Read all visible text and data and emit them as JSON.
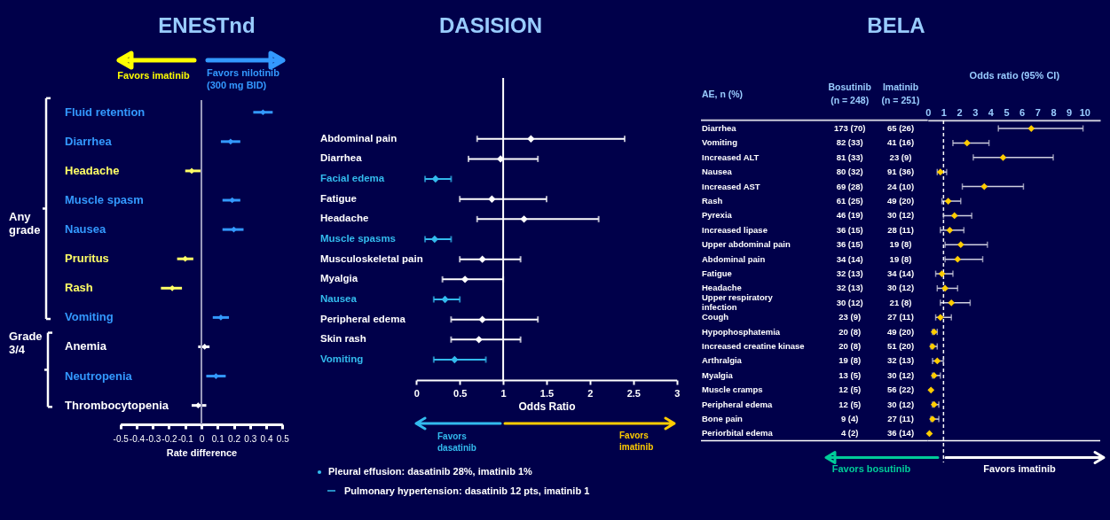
{
  "chart_data": [
    {
      "type": "scatter",
      "title": "ENESTnd",
      "orientation": "horizontal",
      "marker": "diamond",
      "categories": [
        "Fluid retention",
        "Diarrhea",
        "Headache",
        "Muscle spasm",
        "Nausea",
        "Pruritus",
        "Rash",
        "Vomiting",
        "Anemia",
        "Neutropenia",
        "Thrombocytopenia"
      ],
      "values": [
        0.38,
        0.18,
        -0.06,
        0.19,
        0.2,
        -0.1,
        -0.18,
        0.12,
        0.02,
        0.09,
        -0.02
      ],
      "errors": [
        [
          0.32,
          0.44
        ],
        [
          0.12,
          0.24
        ],
        [
          -0.1,
          0
        ],
        [
          0.13,
          0.24
        ],
        [
          0.13,
          0.26
        ],
        [
          -0.15,
          -0.05
        ],
        [
          -0.25,
          -0.12
        ],
        [
          0.07,
          0.17
        ],
        [
          -0.02,
          0.05
        ],
        [
          0.03,
          0.15
        ],
        [
          -0.06,
          0.03
        ]
      ],
      "colors": [
        "#3399ff",
        "#3399ff",
        "#ffff66",
        "#3399ff",
        "#3399ff",
        "#ffff66",
        "#ffff66",
        "#3399ff",
        "#ffffff",
        "#3399ff",
        "#ffffff"
      ],
      "xlabel": "Rate difference",
      "xlim": [
        -0.5,
        0.5
      ],
      "xticks": [
        -0.5,
        -0.4,
        -0.3,
        -0.2,
        -0.1,
        0,
        0.1,
        0.2,
        0.3,
        0.4,
        0.5
      ],
      "ref_lines": [
        {
          "axis": "x",
          "value": 0,
          "color": "#9999bb"
        }
      ],
      "annotations": [
        "Favors imatinib",
        "Favors nilotinib\n(300 mg BID)",
        "Any\ngrade",
        "Grade\n3/4"
      ]
    },
    {
      "type": "scatter",
      "title": "DASISION",
      "orientation": "horizontal",
      "marker": "diamond",
      "categories": [
        "Abdominal pain",
        "Diarrhea",
        "Facial edema",
        "Fatigue",
        "Headache",
        "Muscle spasms",
        "Musculoskeletal pain",
        "Myalgia",
        "Nausea",
        "Peripheral edema",
        "Skin rash",
        "Vomiting"
      ],
      "values": [
        1.32,
        0.97,
        0.22,
        0.87,
        1.24,
        0.21,
        0.76,
        0.56,
        0.33,
        0.76,
        0.72,
        0.44
      ],
      "errors": [
        [
          0.7,
          2.4
        ],
        [
          0.6,
          1.4
        ],
        [
          0.1,
          0.4
        ],
        [
          0.5,
          1.5
        ],
        [
          0.7,
          2.1
        ],
        [
          0.1,
          0.4
        ],
        [
          0.5,
          1.2
        ],
        [
          0.3,
          1.0
        ],
        [
          0.2,
          0.5
        ],
        [
          0.4,
          1.4
        ],
        [
          0.4,
          1.2
        ],
        [
          0.2,
          0.8
        ]
      ],
      "colors": [
        "#ffffff",
        "#ffffff",
        "#33bbee",
        "#ffffff",
        "#ffffff",
        "#33bbee",
        "#ffffff",
        "#ffffff",
        "#33bbee",
        "#ffffff",
        "#ffffff",
        "#33bbee"
      ],
      "xlabel": "Odds Ratio",
      "xlim": [
        0,
        3
      ],
      "xticks": [
        0,
        0.5,
        1,
        1.5,
        2,
        2.5,
        3
      ],
      "ref_lines": [
        {
          "axis": "x",
          "value": 1,
          "color": "#ffffff"
        }
      ],
      "annotations": [
        "Favors\ndasatinib",
        "Favors\nimatinib",
        "Pleural effusion: dasatinib 28%, imatinib 1%",
        "Pulmonary hypertension: dasatinib 12 pts, imatinib 1"
      ]
    },
    {
      "type": "other",
      "title": "BELA",
      "ylabel": "AE, n (%)",
      "categories": [
        "Diarrhea",
        "Vomiting",
        "Increased ALT",
        "Nausea",
        "Increased AST",
        "Rash",
        "Pyrexia",
        "Increased lipase",
        "Upper abdominal pain",
        "Abdominal pain",
        "Fatigue",
        "Headache",
        "Upper respiratory\ninfection",
        "Cough",
        "Hypophosphatemia",
        "Increased creatine kinase",
        "Arthralgia",
        "Myalgia",
        "Muscle cramps",
        "Peripheral edema",
        "Bone pain",
        "Periorbital edema"
      ],
      "series": [
        {
          "name": "Bosutinib\n(n = 248)",
          "values": [
            173,
            82,
            81,
            80,
            69,
            61,
            46,
            36,
            36,
            34,
            32,
            32,
            30,
            23,
            20,
            20,
            19,
            13,
            12,
            12,
            9,
            4
          ],
          "value_labels": [
            "173 (70)",
            "82 (33)",
            "81 (33)",
            "80 (32)",
            "69 (28)",
            "61 (25)",
            "46 (19)",
            "36 (15)",
            "36 (15)",
            "34 (14)",
            "32 (13)",
            "32 (13)",
            "30 (12)",
            "23 (9)",
            "20 (8)",
            "20 (8)",
            "19 (8)",
            "13 (5)",
            "12 (5)",
            "12 (5)",
            "9 (4)",
            "4 (2)"
          ]
        },
        {
          "name": "Imatinib\n(n = 251)",
          "values": [
            65,
            41,
            23,
            91,
            24,
            49,
            30,
            28,
            19,
            19,
            34,
            30,
            21,
            27,
            49,
            51,
            32,
            30,
            56,
            30,
            27,
            36
          ],
          "value_labels": [
            "65 (26)",
            "41 (16)",
            "23 (9)",
            "91 (36)",
            "24 (10)",
            "49 (20)",
            "30 (12)",
            "28 (11)",
            "19 (8)",
            "19 (8)",
            "34 (14)",
            "30 (12)",
            "21 (8)",
            "27 (11)",
            "49 (20)",
            "51 (20)",
            "32 (13)",
            "30 (12)",
            "56 (22)",
            "30 (12)",
            "27 (11)",
            "36 (14)"
          ]
        }
      ]
    },
    {
      "type": "scatter",
      "orientation": "horizontal",
      "marker": "diamond",
      "tick_labels": "x",
      "categories": [
        "Diarrhea",
        "Vomiting",
        "Increased ALT",
        "Nausea",
        "Increased AST",
        "Rash",
        "Pyrexia",
        "Increased lipase",
        "Upper abdominal pain",
        "Abdominal pain",
        "Fatigue",
        "Headache",
        "Upper respiratory\ninfection",
        "Cough",
        "Hypophosphatemia",
        "Increased creatine kinase",
        "Arthralgia",
        "Myalgia",
        "Muscle cramps",
        "Peripheral edema",
        "Bone pain",
        "Periorbital edema"
      ],
      "values": [
        6.6,
        2.5,
        4.8,
        0.8,
        3.6,
        1.3,
        1.7,
        1.4,
        2.1,
        1.9,
        0.9,
        1.1,
        1.5,
        0.8,
        0.4,
        0.3,
        0.6,
        0.4,
        0.2,
        0.4,
        0.3,
        0.1
      ],
      "errors": [
        [
          4.5,
          9.9
        ],
        [
          1.6,
          3.9
        ],
        [
          2.9,
          8.0
        ],
        [
          0.6,
          1.2
        ],
        [
          2.2,
          6.1
        ],
        [
          0.9,
          2.1
        ],
        [
          1.0,
          2.8
        ],
        [
          0.8,
          2.3
        ],
        [
          1.1,
          3.8
        ],
        [
          1.1,
          3.5
        ],
        [
          0.5,
          1.6
        ],
        [
          0.6,
          1.9
        ],
        [
          0.8,
          2.7
        ],
        [
          0.5,
          1.5
        ],
        [
          0.3,
          0.6
        ],
        [
          0.2,
          0.6
        ],
        [
          0.3,
          1.0
        ],
        [
          0.3,
          0.8
        ],
        null,
        [
          0.3,
          0.7
        ],
        [
          0.2,
          0.7
        ],
        null
      ],
      "color": "#ffcc00",
      "xlabel": "Odds ratio (95% CI)",
      "xlim": [
        0,
        11
      ],
      "xticks": [
        0,
        1,
        2,
        3,
        4,
        5,
        6,
        7,
        8,
        9,
        10
      ],
      "ref_lines": [
        {
          "axis": "x",
          "value": 1,
          "color": "#ffffff",
          "line_style": "dashed"
        }
      ],
      "annotations": [
        "Favors bosutinib",
        "Favors imatinib"
      ]
    }
  ]
}
